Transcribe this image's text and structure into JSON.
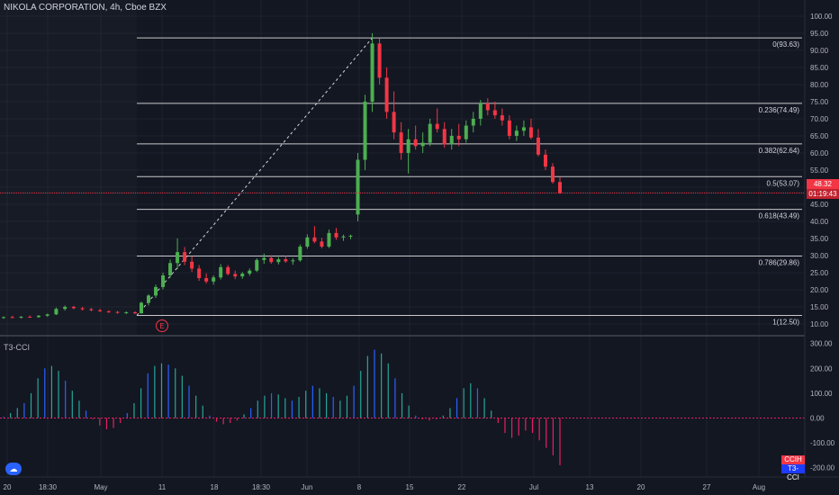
{
  "header": {
    "symbol_line": "NIKOLA CORPORATION, 4h, Cboe BZX"
  },
  "indicator": {
    "name": "T3-CCI",
    "legend_cci": "CCIH",
    "legend_t3": "T3-CCI"
  },
  "badges": {
    "earnings": "E"
  },
  "price_tags": {
    "last": "48.32",
    "countdown": "01:19:43"
  },
  "colors": {
    "background": "#131722",
    "up": "#4caf50",
    "down": "#f23645",
    "grid": "#2a2e39",
    "fib_line": "#c9c9c9",
    "cci_up": "#26a69a",
    "cci_down": "#e91e63",
    "cci_blue": "#2962ff"
  },
  "chart_data": [
    {
      "type": "candlestick",
      "title": "NIKOLA CORPORATION, 4h, Cboe BZX",
      "ylim": [
        7.5,
        102
      ],
      "price_axis_ticks": [
        "100.00",
        "95.00",
        "90.00",
        "85.00",
        "80.00",
        "75.00",
        "70.00",
        "65.00",
        "60.00",
        "55.00",
        "50.00",
        "45.00",
        "40.00",
        "35.00",
        "30.00",
        "25.00",
        "20.00",
        "15.00",
        "10.00"
      ],
      "time_axis_ticks": [
        "20",
        "18:30",
        "May",
        "11",
        "18",
        "18:30",
        "Jun",
        "8",
        "15",
        "22",
        "Jul",
        "13",
        "20",
        "27",
        "Aug"
      ],
      "fibonacci": [
        {
          "label": "0(93.63)",
          "value": 93.63
        },
        {
          "label": "0.236(74.49)",
          "value": 74.49
        },
        {
          "label": "0.382(62.64)",
          "value": 62.64
        },
        {
          "label": "0.5(53.07)",
          "value": 53.07
        },
        {
          "label": "0.618(43.49)",
          "value": 43.49
        },
        {
          "label": "0.786(29.86)",
          "value": 29.86
        },
        {
          "label": "1(12.50)",
          "value": 12.5
        }
      ],
      "last_price": 48.32,
      "candles": [
        [
          11.8,
          12.2,
          11.5,
          12.0
        ],
        [
          12.0,
          12.4,
          11.7,
          11.9
        ],
        [
          11.9,
          12.3,
          11.6,
          12.1
        ],
        [
          12.1,
          12.5,
          11.8,
          12.0
        ],
        [
          12.0,
          12.6,
          11.8,
          12.4
        ],
        [
          12.4,
          13.0,
          12.1,
          12.8
        ],
        [
          12.8,
          14.8,
          12.6,
          14.4
        ],
        [
          14.4,
          15.4,
          13.9,
          15.0
        ],
        [
          15.0,
          15.3,
          14.3,
          14.6
        ],
        [
          14.6,
          15.0,
          13.9,
          14.3
        ],
        [
          14.3,
          14.7,
          13.7,
          14.0
        ],
        [
          14.0,
          14.4,
          13.5,
          13.7
        ],
        [
          13.7,
          14.0,
          13.2,
          13.5
        ],
        [
          13.5,
          13.8,
          13.0,
          13.3
        ],
        [
          13.3,
          13.7,
          12.9,
          13.4
        ],
        [
          13.4,
          13.7,
          12.9,
          13.1
        ],
        [
          13.1,
          16.5,
          13.0,
          16.2
        ],
        [
          16.2,
          18.7,
          15.4,
          18.3
        ],
        [
          18.3,
          21.5,
          17.6,
          20.8
        ],
        [
          20.8,
          25.0,
          20.1,
          24.2
        ],
        [
          24.2,
          28.8,
          23.5,
          27.8
        ],
        [
          27.8,
          35.0,
          26.0,
          31.0
        ],
        [
          31.0,
          32.5,
          27.2,
          28.2
        ],
        [
          28.2,
          29.8,
          25.2,
          26.2
        ],
        [
          26.2,
          27.2,
          22.6,
          23.4
        ],
        [
          23.4,
          24.8,
          21.8,
          22.4
        ],
        [
          22.4,
          24.2,
          21.5,
          23.6
        ],
        [
          23.6,
          27.5,
          23.0,
          26.6
        ],
        [
          26.6,
          27.2,
          24.2,
          24.6
        ],
        [
          24.6,
          25.6,
          23.1,
          23.9
        ],
        [
          23.9,
          25.2,
          23.2,
          24.7
        ],
        [
          24.7,
          26.2,
          24.1,
          25.6
        ],
        [
          25.6,
          29.2,
          25.2,
          28.7
        ],
        [
          28.7,
          30.6,
          27.6,
          29.3
        ],
        [
          29.3,
          30.1,
          27.6,
          28.1
        ],
        [
          28.1,
          29.5,
          27.4,
          28.9
        ],
        [
          28.9,
          29.9,
          27.9,
          28.3
        ],
        [
          28.3,
          29.2,
          27.3,
          28.6
        ],
        [
          28.6,
          33.2,
          28.2,
          32.6
        ],
        [
          32.6,
          36.2,
          32.0,
          35.3
        ],
        [
          35.3,
          38.6,
          33.6,
          34.1
        ],
        [
          34.1,
          35.2,
          32.1,
          32.6
        ],
        [
          32.6,
          37.6,
          32.2,
          36.6
        ],
        [
          36.6,
          38.1,
          34.6,
          35.3
        ],
        [
          35.3,
          36.1,
          34.3,
          35.6
        ],
        [
          35.6,
          36.1,
          34.8,
          35.8
        ],
        [
          42.0,
          60.0,
          40.0,
          58.0
        ],
        [
          58.0,
          77.0,
          55.0,
          75.0
        ],
        [
          75.0,
          95.0,
          72.0,
          92.0
        ],
        [
          92.0,
          93.6,
          80.0,
          82.0
        ],
        [
          82.0,
          85.0,
          70.0,
          72.0
        ],
        [
          72.0,
          78.0,
          64.0,
          66.0
        ],
        [
          66.0,
          69.0,
          58.0,
          60.0
        ],
        [
          60.0,
          67.0,
          54.0,
          64.0
        ],
        [
          64.0,
          68.0,
          61.0,
          62.0
        ],
        [
          62.0,
          66.0,
          60.0,
          63.0
        ],
        [
          63.0,
          70.0,
          62.0,
          68.5
        ],
        [
          68.5,
          73.0,
          66.0,
          67.0
        ],
        [
          67.0,
          69.0,
          61.5,
          62.5
        ],
        [
          62.5,
          67.0,
          61.0,
          65.0
        ],
        [
          65.0,
          68.5,
          62.0,
          64.0
        ],
        [
          64.0,
          69.5,
          63.0,
          68.0
        ],
        [
          68.0,
          72.0,
          66.0,
          70.0
        ],
        [
          70.0,
          75.5,
          68.0,
          74.5
        ],
        [
          74.5,
          76.0,
          71.0,
          72.5
        ],
        [
          72.5,
          75.0,
          70.0,
          71.0
        ],
        [
          71.0,
          73.0,
          68.0,
          69.5
        ],
        [
          69.5,
          71.0,
          64.0,
          65.0
        ],
        [
          65.0,
          68.0,
          63.5,
          66.5
        ],
        [
          66.5,
          69.5,
          65.0,
          67.5
        ],
        [
          67.5,
          70.0,
          64.0,
          64.5
        ],
        [
          64.5,
          67.0,
          59.0,
          59.5
        ],
        [
          59.5,
          61.0,
          55.0,
          56.0
        ],
        [
          56.0,
          57.0,
          51.0,
          51.5
        ],
        [
          51.5,
          53.0,
          48.0,
          48.3
        ]
      ]
    },
    {
      "type": "bar",
      "title": "T3-CCI",
      "ylim": [
        -230,
        310
      ],
      "axis_ticks": [
        "300.00",
        "200.00",
        "100.00",
        "0.00",
        "-100.00",
        "-200.00"
      ],
      "values": [
        5,
        20,
        40,
        60,
        100,
        160,
        200,
        210,
        190,
        150,
        110,
        70,
        30,
        -5,
        -30,
        -45,
        -40,
        -20,
        20,
        60,
        120,
        180,
        210,
        220,
        215,
        200,
        170,
        130,
        90,
        50,
        10,
        -15,
        -25,
        -20,
        -10,
        15,
        40,
        70,
        90,
        100,
        95,
        80,
        70,
        85,
        110,
        130,
        120,
        100,
        85,
        70,
        90,
        130,
        190,
        250,
        275,
        260,
        220,
        160,
        100,
        50,
        10,
        -5,
        -10,
        -5,
        10,
        40,
        80,
        120,
        140,
        120,
        80,
        30,
        -20,
        -60,
        -80,
        -70,
        -50,
        -60,
        -90,
        -120,
        -150,
        -190
      ]
    }
  ]
}
